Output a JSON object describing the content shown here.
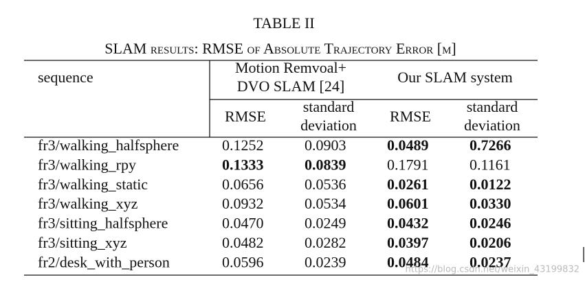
{
  "title": "TABLE II",
  "caption": "SLAM results: RMSE of Absolute Trajectory Error [m]",
  "table": {
    "header": {
      "sequence": "sequence",
      "groups": [
        [
          "Motion Remvoal+",
          "DVO SLAM [24]"
        ],
        [
          "Our SLAM system"
        ]
      ],
      "columns": [
        [
          "RMSE"
        ],
        [
          "standard",
          "deviation"
        ],
        [
          "RMSE"
        ],
        [
          "standard",
          "deviation"
        ]
      ]
    },
    "rows": [
      {
        "sequence": "fr3/walking_halfsphere",
        "values": [
          "0.1252",
          "0.0903",
          "0.0489",
          "0.7266"
        ],
        "bold": [
          false,
          false,
          true,
          true
        ]
      },
      {
        "sequence": "fr3/walking_rpy",
        "values": [
          "0.1333",
          "0.0839",
          "0.1791",
          "0.1161"
        ],
        "bold": [
          true,
          true,
          false,
          false
        ]
      },
      {
        "sequence": "fr3/walking_static",
        "values": [
          "0.0656",
          "0.0536",
          "0.0261",
          "0.0122"
        ],
        "bold": [
          false,
          false,
          true,
          true
        ]
      },
      {
        "sequence": "fr3/walking_xyz",
        "values": [
          "0.0932",
          "0.0534",
          "0.0601",
          "0.0330"
        ],
        "bold": [
          false,
          false,
          true,
          true
        ]
      },
      {
        "sequence": "fr3/sitting_halfsphere",
        "values": [
          "0.0470",
          "0.0249",
          "0.0432",
          "0.0246"
        ],
        "bold": [
          false,
          false,
          true,
          true
        ]
      },
      {
        "sequence": "fr3/sitting_xyz",
        "values": [
          "0.0482",
          "0.0282",
          "0.0397",
          "0.0206"
        ],
        "bold": [
          false,
          false,
          true,
          true
        ]
      },
      {
        "sequence": "fr2/desk_with_person",
        "values": [
          "0.0596",
          "0.0239",
          "0.0484",
          "0.0237"
        ],
        "bold": [
          false,
          false,
          true,
          true
        ]
      }
    ]
  },
  "watermark": "https://blog.csdn.net/weixin_43199832"
}
